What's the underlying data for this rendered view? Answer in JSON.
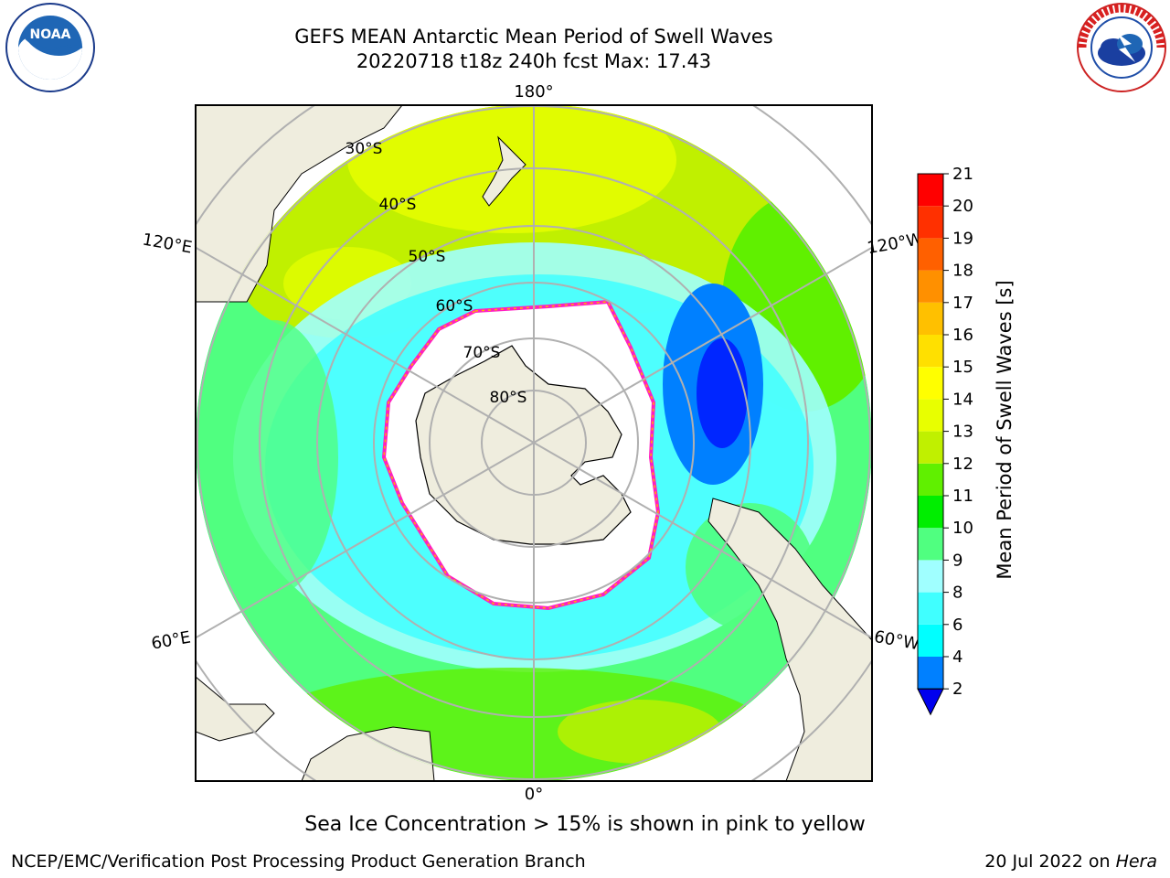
{
  "title": {
    "line1": "GEFS MEAN Antarctic Mean Period of Swell Waves",
    "line2": "20220718 t18z 240h fcst   Max: 17.43"
  },
  "logos": {
    "left": "NOAA",
    "right": "NATIONAL WEATHER SERVICE"
  },
  "map": {
    "projection": "south polar stereographic",
    "longitude_labels": [
      "180°",
      "120°E",
      "120°W",
      "60°E",
      "60°W",
      "0°"
    ],
    "latitude_labels": [
      "30°S",
      "40°S",
      "50°S",
      "60°S",
      "70°S",
      "80°S"
    ]
  },
  "colorbar": {
    "label": "Mean Period of Swell Waves [s]",
    "ticks": [
      "2",
      "4",
      "6",
      "8",
      "9",
      "10",
      "11",
      "12",
      "13",
      "14",
      "15",
      "16",
      "17",
      "18",
      "19",
      "20",
      "21"
    ],
    "colors": [
      "#0000ff",
      "#0080ff",
      "#00ffff",
      "#40ffff",
      "#a0ffff",
      "#50ff80",
      "#00ee00",
      "#60f000",
      "#c0f000",
      "#e8ff00",
      "#ffff00",
      "#ffe000",
      "#ffc000",
      "#ff9000",
      "#ff6000",
      "#ff3000",
      "#ff0000"
    ],
    "extend_min_color": "#0000ee"
  },
  "note": "Sea Ice Concentration > 15% is shown in pink to yellow",
  "footer": {
    "left": "NCEP/EMC/Verification Post Processing Product Generation Branch",
    "right_date": "20 Jul 2022 on ",
    "right_machine": "Hera"
  }
}
